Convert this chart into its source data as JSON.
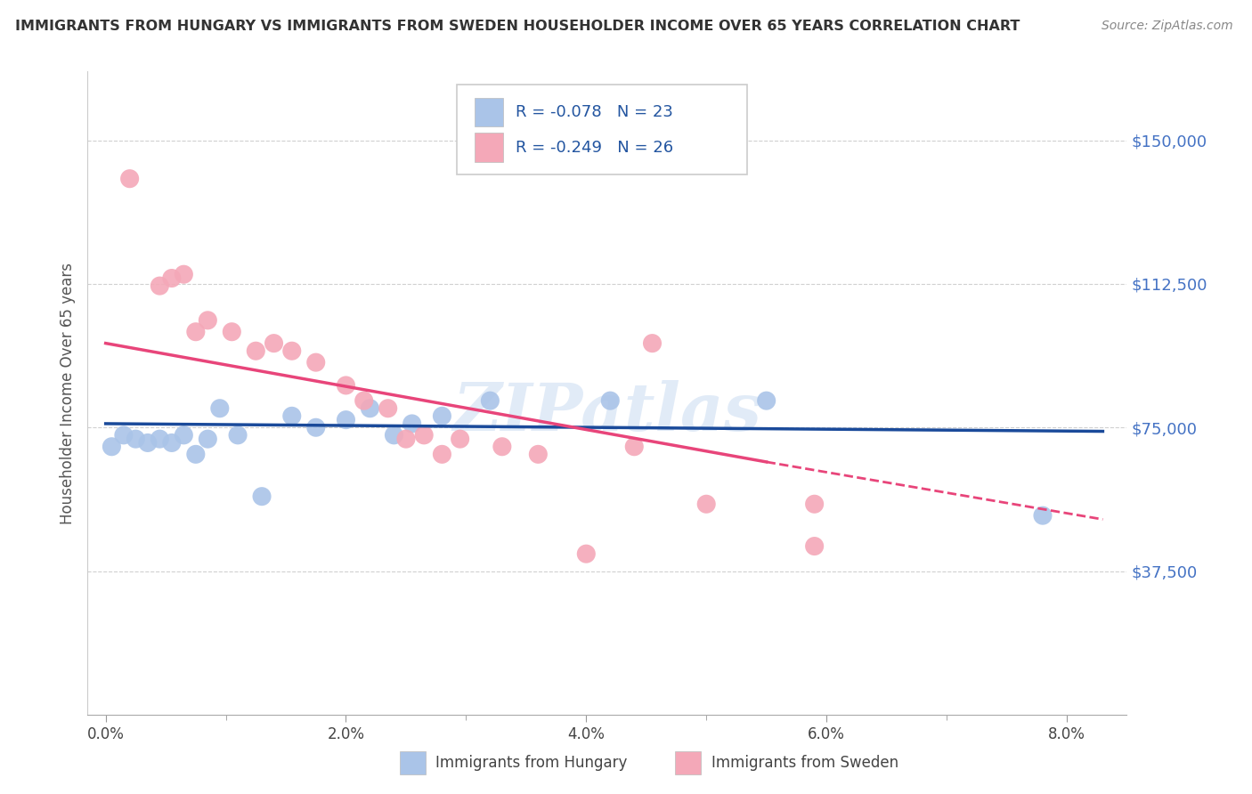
{
  "title": "IMMIGRANTS FROM HUNGARY VS IMMIGRANTS FROM SWEDEN HOUSEHOLDER INCOME OVER 65 YEARS CORRELATION CHART",
  "source": "Source: ZipAtlas.com",
  "ylabel": "Householder Income Over 65 years",
  "xlabel_ticks": [
    "0.0%",
    "2.0%",
    "4.0%",
    "6.0%",
    "8.0%"
  ],
  "xlabel_vals": [
    0.0,
    2.0,
    4.0,
    6.0,
    8.0
  ],
  "ytick_labels": [
    "$37,500",
    "$75,000",
    "$112,500",
    "$150,000"
  ],
  "ytick_vals": [
    37500,
    75000,
    112500,
    150000
  ],
  "ylim": [
    0,
    168000
  ],
  "xlim": [
    -0.15,
    8.5
  ],
  "hungary_R": -0.078,
  "hungary_N": 23,
  "sweden_R": -0.249,
  "sweden_N": 26,
  "hungary_color": "#aac4e8",
  "hungary_line_color": "#1a4a9a",
  "sweden_color": "#f4a8b8",
  "sweden_line_color": "#e8457a",
  "legend_text_color": "#2355a0",
  "watermark": "ZIPatlas",
  "hungary_x": [
    0.05,
    0.15,
    0.25,
    0.35,
    0.45,
    0.55,
    0.65,
    0.75,
    0.85,
    0.95,
    1.1,
    1.3,
    1.55,
    1.75,
    2.0,
    2.2,
    2.4,
    2.55,
    2.8,
    3.2,
    4.2,
    5.5,
    7.8
  ],
  "hungary_y": [
    70000,
    73000,
    72000,
    71000,
    72000,
    71000,
    73000,
    68000,
    72000,
    80000,
    73000,
    57000,
    78000,
    75000,
    77000,
    80000,
    73000,
    76000,
    78000,
    82000,
    82000,
    82000,
    52000
  ],
  "sweden_x": [
    0.2,
    0.45,
    0.55,
    0.65,
    0.75,
    0.85,
    1.05,
    1.25,
    1.4,
    1.55,
    1.75,
    2.0,
    2.15,
    2.35,
    2.5,
    2.65,
    2.8,
    2.95,
    3.3,
    3.6,
    4.55,
    5.0,
    4.4,
    5.9,
    5.9,
    4.0
  ],
  "sweden_y": [
    140000,
    112000,
    114000,
    115000,
    100000,
    103000,
    100000,
    95000,
    97000,
    95000,
    92000,
    86000,
    82000,
    80000,
    72000,
    73000,
    68000,
    72000,
    70000,
    68000,
    97000,
    55000,
    70000,
    55000,
    44000,
    42000
  ],
  "hungary_line_x0": 0.0,
  "hungary_line_y0": 76000,
  "hungary_line_x1": 8.3,
  "hungary_line_y1": 74000,
  "sweden_line_x0": 0.0,
  "sweden_line_y0": 97000,
  "sweden_line_x1": 5.5,
  "sweden_line_y1": 66000,
  "sweden_dash_x0": 5.5,
  "sweden_dash_y0": 66000,
  "sweden_dash_x1": 8.3,
  "sweden_dash_y1": 51000
}
